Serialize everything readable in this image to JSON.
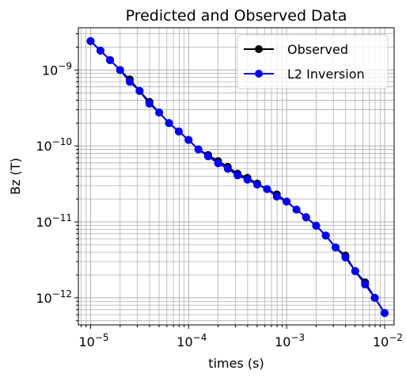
{
  "chart_data": {
    "type": "line",
    "title": "Predicted and Observed Data",
    "xlabel": "times (s)",
    "ylabel": "Bz (T)",
    "xscale": "log",
    "yscale": "log",
    "xlim": [
      7.5e-06,
      1.25e-05
    ],
    "ylim": [
      4.4e-13,
      3.6e-09
    ],
    "x_ticks": [
      {
        "value": 1e-05,
        "base": "10",
        "exp": "−5"
      },
      {
        "value": 0.0001,
        "base": "10",
        "exp": "−4"
      },
      {
        "value": 0.001,
        "base": "10",
        "exp": "−3"
      },
      {
        "value": 0.01,
        "base": "10",
        "exp": "−2"
      }
    ],
    "y_ticks": [
      {
        "value": 1e-12,
        "base": "10",
        "exp": "−12"
      },
      {
        "value": 1e-11,
        "base": "10",
        "exp": "−11"
      },
      {
        "value": 1e-10,
        "base": "10",
        "exp": "−10"
      },
      {
        "value": 1e-09,
        "base": "10",
        "exp": "−9"
      }
    ],
    "grid": "major and minor",
    "legend_position": "upper right",
    "series": [
      {
        "name": "Observed",
        "color": "#000000",
        "marker": "circle",
        "x": [
          1e-05,
          1.26e-05,
          1.58e-05,
          2e-05,
          2.51e-05,
          3.16e-05,
          3.98e-05,
          5.01e-05,
          6.31e-05,
          7.94e-05,
          0.0001,
          0.000126,
          0.000158,
          0.0002,
          0.000251,
          0.000316,
          0.000398,
          0.000501,
          0.000631,
          0.000794,
          0.001,
          0.00126,
          0.00158,
          0.002,
          0.00251,
          0.00316,
          0.00398,
          0.00501,
          0.00631,
          0.00794,
          0.01
        ],
        "y": [
          2.4e-09,
          1.8e-09,
          1.35e-09,
          1e-09,
          7.5e-10,
          5.3e-10,
          3.8e-10,
          2.75e-10,
          2e-10,
          1.55e-10,
          1.2e-10,
          9e-11,
          7.6e-11,
          6.3e-11,
          5.3e-11,
          4.3e-11,
          3.8e-11,
          3.2e-11,
          2.7e-11,
          2.3e-11,
          1.85e-11,
          1.45e-11,
          1.15e-11,
          8.9e-12,
          6.6e-12,
          4.6e-12,
          3.6e-12,
          2.25e-12,
          1.6e-12,
          1e-12,
          6.3e-13
        ]
      },
      {
        "name": "L2 Inversion",
        "color": "#0000ff",
        "marker": "circle",
        "x": [
          1e-05,
          1.26e-05,
          1.58e-05,
          2e-05,
          2.51e-05,
          3.16e-05,
          3.98e-05,
          5.01e-05,
          6.31e-05,
          7.94e-05,
          0.0001,
          0.000126,
          0.000158,
          0.0002,
          0.000251,
          0.000316,
          0.000398,
          0.000501,
          0.000631,
          0.000794,
          0.001,
          0.00126,
          0.00158,
          0.002,
          0.00251,
          0.00316,
          0.00398,
          0.00501,
          0.00631,
          0.00794,
          0.01
        ],
        "y": [
          2.4e-09,
          1.8e-09,
          1.35e-09,
          1e-09,
          7e-10,
          5.3e-10,
          3.6e-10,
          2.75e-10,
          2e-10,
          1.55e-10,
          1.2e-10,
          9e-11,
          7.3e-11,
          5.9e-11,
          5e-11,
          4.1e-11,
          3.6e-11,
          3.1e-11,
          2.7e-11,
          2.15e-11,
          1.85e-11,
          1.45e-11,
          1.15e-11,
          8.9e-12,
          6.6e-12,
          4.6e-12,
          3.4e-12,
          2.25e-12,
          1.5e-12,
          1e-12,
          6.3e-13
        ]
      }
    ]
  }
}
